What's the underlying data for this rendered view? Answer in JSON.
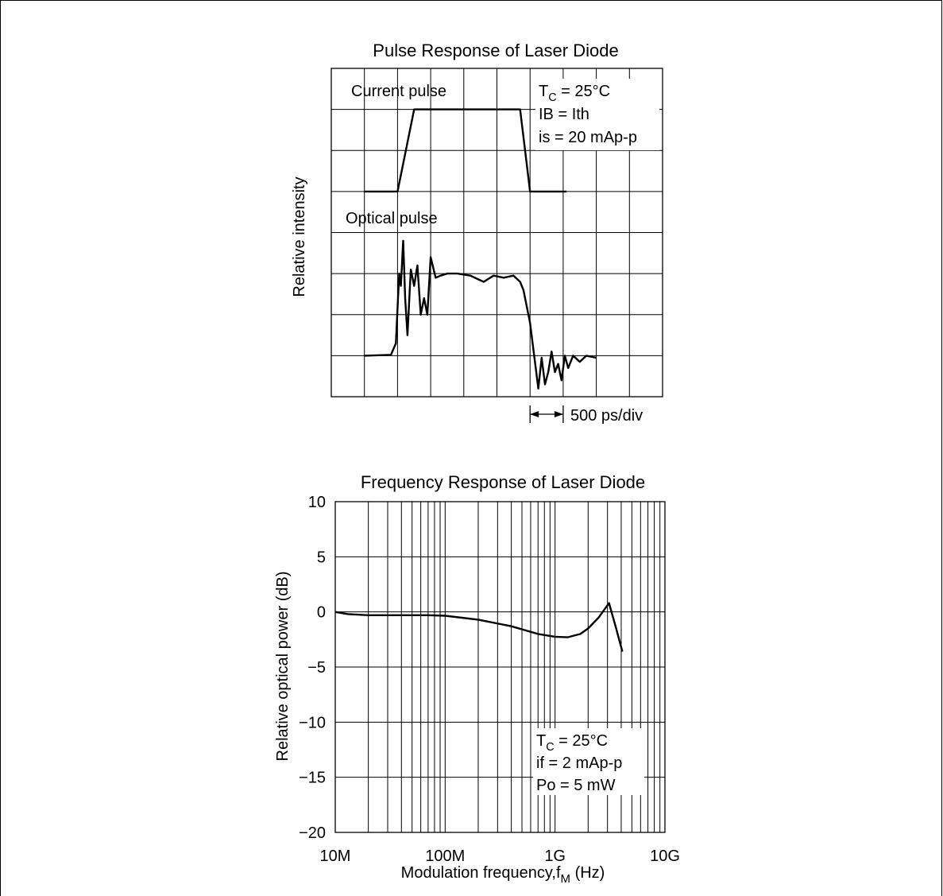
{
  "chart_data": [
    {
      "type": "line",
      "title": "Pulse Response of Laser Diode",
      "ylabel": "Relative intensity",
      "xlabel": "",
      "grid": true,
      "divisions": {
        "x": 10,
        "y": 8
      },
      "scale_label": "500 ps/div",
      "annotations": [
        {
          "text": "T",
          "sub": "C",
          "rest": " = 25°C"
        },
        {
          "text": "IB = Ith"
        },
        {
          "text": "is = 20 mAp-p"
        }
      ],
      "series": [
        {
          "name": "Current pulse",
          "x": [
            1.0,
            2.0,
            2.5,
            5.7,
            6.0,
            7.1
          ],
          "y": [
            5.0,
            5.0,
            7.0,
            7.0,
            5.0,
            5.0
          ]
        },
        {
          "name": "Optical pulse",
          "x": [
            1.0,
            1.8,
            1.95,
            2.05,
            2.1,
            2.17,
            2.23,
            2.3,
            2.4,
            2.5,
            2.6,
            2.7,
            2.8,
            2.9,
            3.0,
            3.15,
            3.3,
            3.5,
            3.8,
            4.2,
            4.6,
            4.9,
            5.2,
            5.5,
            5.7,
            5.8,
            6.0,
            6.25,
            6.35,
            6.45,
            6.55,
            6.65,
            6.75,
            6.85,
            6.95,
            7.05,
            7.15,
            7.3,
            7.5,
            7.7,
            8.0
          ],
          "y": [
            1.0,
            1.02,
            1.3,
            3.0,
            2.7,
            3.8,
            2.4,
            1.5,
            3.1,
            2.7,
            3.2,
            2.0,
            2.4,
            2.0,
            3.4,
            2.9,
            2.95,
            3.0,
            3.0,
            2.95,
            2.8,
            2.95,
            2.9,
            2.95,
            2.8,
            2.6,
            1.8,
            0.2,
            0.95,
            0.3,
            0.6,
            1.1,
            0.6,
            0.8,
            0.4,
            1.0,
            0.7,
            1.0,
            0.85,
            1.0,
            0.95
          ]
        }
      ]
    },
    {
      "type": "line",
      "title": "Frequency Response of Laser Diode",
      "ylabel": "Relative optical power   (dB)",
      "xlabel": {
        "text": "Modulation frequency,f",
        "sub": "M",
        "rest": "  (Hz)"
      },
      "xscale": "log",
      "xlim": [
        10000000,
        10000000000
      ],
      "ylim": [
        -20,
        10
      ],
      "grid": true,
      "x_ticks": [
        {
          "value": 10000000,
          "label": "10M"
        },
        {
          "value": 100000000,
          "label": "100M"
        },
        {
          "value": 1000000000,
          "label": "1G"
        },
        {
          "value": 10000000000,
          "label": "10G"
        }
      ],
      "y_ticks": [
        {
          "value": 10,
          "label": "10"
        },
        {
          "value": 5,
          "label": "5"
        },
        {
          "value": 0,
          "label": "0"
        },
        {
          "value": -5,
          "label": "−5"
        },
        {
          "value": -10,
          "label": "−10"
        },
        {
          "value": -15,
          "label": "−15"
        },
        {
          "value": -20,
          "label": "−20"
        }
      ],
      "annotations": [
        {
          "text": "T",
          "sub": "C",
          "rest": " = 25°C"
        },
        {
          "text": "if = 2 mAp-p"
        },
        {
          "text": "Po = 5 mW"
        }
      ],
      "series": [
        {
          "x": [
            10000000,
            13000000,
            20000000,
            40000000,
            70000000,
            100000000,
            200000000,
            400000000,
            700000000,
            1000000000,
            1300000000,
            1700000000,
            2000000000,
            2500000000,
            3100000000,
            3600000000,
            4100000000
          ],
          "y": [
            0,
            -0.2,
            -0.3,
            -0.3,
            -0.3,
            -0.35,
            -0.7,
            -1.3,
            -2.0,
            -2.25,
            -2.3,
            -2.0,
            -1.5,
            -0.5,
            0.8,
            -1.5,
            -3.6
          ]
        }
      ]
    }
  ]
}
